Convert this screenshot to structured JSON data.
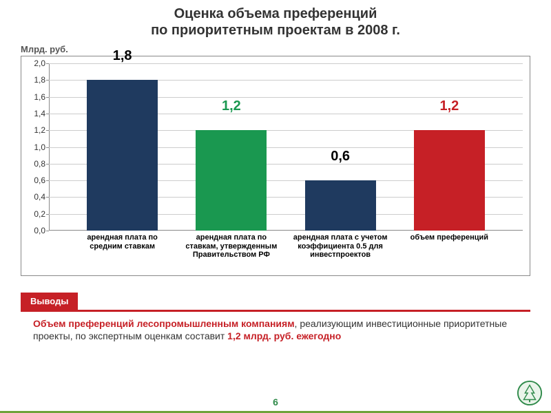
{
  "title_line1": "Оценка объема преференций",
  "title_line2": "по приоритетным проектам в 2008 г.",
  "unit_label": "Млрд. руб.",
  "chart": {
    "type": "bar",
    "background_color": "#ffffff",
    "grid_color": "#cccccc",
    "axis_color": "#888888",
    "ylim": [
      0.0,
      2.0
    ],
    "ytick_step": 0.2,
    "yticks": [
      "0,0",
      "0,2",
      "0,4",
      "0,6",
      "0,8",
      "1,0",
      "1,2",
      "1,4",
      "1,6",
      "1,8",
      "2,0"
    ],
    "bar_width_pct": 15,
    "bar_gap_pct": 10,
    "label_fontsize": 11,
    "value_fontsize": 20,
    "tick_fontsize": 12,
    "bars": [
      {
        "value": 1.8,
        "value_label": "1,8",
        "color": "#1f3a5f",
        "label_color": "#000000",
        "xlabel": "арендная плата по средним ставкам"
      },
      {
        "value": 1.2,
        "value_label": "1,2",
        "color": "#1a9850",
        "label_color": "#1a9850",
        "xlabel": "арендная плата по ставкам, утвержденным Правительством РФ"
      },
      {
        "value": 0.6,
        "value_label": "0,6",
        "color": "#1f3a5f",
        "label_color": "#000000",
        "xlabel": "арендная плата с учетом коэффициента 0.5 для инвестпроектов"
      },
      {
        "value": 1.2,
        "value_label": "1,2",
        "color": "#c62026",
        "label_color": "#c62026",
        "xlabel": "объем преференций"
      }
    ]
  },
  "conclusion": {
    "tab_label": "Выводы",
    "tab_bg": "#c62026",
    "tab_fg": "#ffffff",
    "line_color": "#c62026",
    "text_plain_1": "Объем преференций лесопромышленным компаниям",
    "text_plain_2": ", реализующим инвестиционные приоритетные проекты, по экспертным оценкам составит ",
    "text_highlight": "1,2 млрд. руб. ежегодно",
    "highlight_color": "#c62026"
  },
  "page_number": "6",
  "page_number_color": "#2f8a4a",
  "bottom_bar_color": "#6ea23a",
  "corner_icon": {
    "stroke": "#2f8a4a",
    "fill": "#eaf4ea"
  }
}
